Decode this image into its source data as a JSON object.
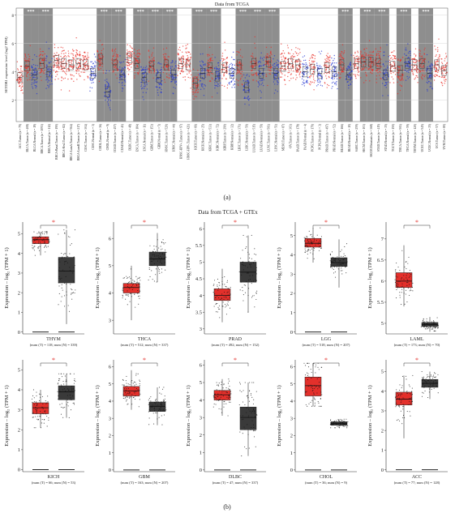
{
  "chart_data": [
    {
      "panel": "(a)",
      "type": "box",
      "title": "Data from TCGA",
      "ylabel": "SETDB1 expression level (log2 TPM)",
      "yticks": [
        2,
        4,
        6,
        8
      ],
      "ylim": [
        0.5,
        8.5
      ],
      "colors": {
        "tumor": "#e8302a",
        "normal": "#2a3bd1",
        "highlight_bg": "#8e8e8e"
      },
      "significance_marker": "***",
      "groups": [
        {
          "label": "ACC.Tumor (n = 79)",
          "kind": "tumor",
          "median": 3.6,
          "sig": false,
          "bg": false
        },
        {
          "label": "BLCA.Tumor (n = 408)",
          "kind": "tumor",
          "median": 4.4,
          "sig": true,
          "bg": true
        },
        {
          "label": "BLCA.Normal (n = 19)",
          "kind": "normal",
          "median": 3.8,
          "sig": false,
          "bg": true
        },
        {
          "label": "BRCA.Tumor (n = 1093)",
          "kind": "tumor",
          "median": 4.6,
          "sig": true,
          "bg": true
        },
        {
          "label": "BRCA.Normal (n = 112)",
          "kind": "normal",
          "median": 4.0,
          "sig": false,
          "bg": true
        },
        {
          "label": "BRCA-Basal.Tumor (n = 190)",
          "kind": "tumor",
          "median": 4.8,
          "sig": false,
          "bg": false
        },
        {
          "label": "BRCA-Her2.Tumor (n = 82)",
          "kind": "tumor",
          "median": 4.6,
          "sig": false,
          "bg": false
        },
        {
          "label": "BRCA-LumA.Tumor (n = 564)",
          "kind": "tumor",
          "median": 4.5,
          "sig": false,
          "bg": false
        },
        {
          "label": "BRCA-LumB.Tumor (n = 217)",
          "kind": "tumor",
          "median": 4.6,
          "sig": false,
          "bg": false
        },
        {
          "label": "CESC.Tumor (n = 304)",
          "kind": "tumor",
          "median": 4.5,
          "sig": false,
          "bg": false
        },
        {
          "label": "CESC.Normal (n = 3)",
          "kind": "normal",
          "median": 3.9,
          "sig": false,
          "bg": false
        },
        {
          "label": "CHOL.Tumor (n = 36)",
          "kind": "tumor",
          "median": 4.9,
          "sig": true,
          "bg": true
        },
        {
          "label": "CHOL.Normal (n = 9)",
          "kind": "normal",
          "median": 2.6,
          "sig": false,
          "bg": true
        },
        {
          "label": "COAD.Tumor (n = 457)",
          "kind": "tumor",
          "median": 4.5,
          "sig": true,
          "bg": true
        },
        {
          "label": "COAD.Normal (n = 41)",
          "kind": "normal",
          "median": 3.8,
          "sig": false,
          "bg": true
        },
        {
          "label": "DLBC.Tumor (n = 48)",
          "kind": "tumor",
          "median": 5.0,
          "sig": false,
          "bg": false
        },
        {
          "label": "ESCA.Tumor (n = 184)",
          "kind": "tumor",
          "median": 4.6,
          "sig": true,
          "bg": true
        },
        {
          "label": "ESCA.Normal (n = 11)",
          "kind": "normal",
          "median": 3.6,
          "sig": false,
          "bg": true
        },
        {
          "label": "GBM.Tumor (n = 153)",
          "kind": "tumor",
          "median": 4.4,
          "sig": true,
          "bg": true
        },
        {
          "label": "GBM.Normal (n = 5)",
          "kind": "normal",
          "median": 3.6,
          "sig": false,
          "bg": true
        },
        {
          "label": "HNSC.Tumor (n = 520)",
          "kind": "tumor",
          "median": 4.5,
          "sig": true,
          "bg": true
        },
        {
          "label": "HNSC.Normal (n = 44)",
          "kind": "normal",
          "median": 3.8,
          "sig": false,
          "bg": true
        },
        {
          "label": "HNSC-HPV+.Tumor (n = 97)",
          "kind": "tumor",
          "median": 4.6,
          "sig": false,
          "bg": false
        },
        {
          "label": "HNSC-HPV-.Tumor (n = 421)",
          "kind": "tumor",
          "median": 4.5,
          "sig": false,
          "bg": false
        },
        {
          "label": "KICH.Tumor (n = 66)",
          "kind": "tumor",
          "median": 3.2,
          "sig": true,
          "bg": true
        },
        {
          "label": "KICH.Normal (n = 25)",
          "kind": "normal",
          "median": 3.9,
          "sig": false,
          "bg": true
        },
        {
          "label": "KIRC.Tumor (n = 533)",
          "kind": "tumor",
          "median": 4.3,
          "sig": true,
          "bg": true
        },
        {
          "label": "KIRC.Normal (n = 72)",
          "kind": "normal",
          "median": 3.7,
          "sig": false,
          "bg": true
        },
        {
          "label": "KIRP.Tumor (n = 290)",
          "kind": "tumor",
          "median": 4.3,
          "sig": false,
          "bg": false
        },
        {
          "label": "KIRP.Normal (n = 32)",
          "kind": "normal",
          "median": 3.9,
          "sig": false,
          "bg": false
        },
        {
          "label": "LIHC.Tumor (n = 371)",
          "kind": "tumor",
          "median": 4.5,
          "sig": true,
          "bg": true
        },
        {
          "label": "LIHC.Normal (n = 50)",
          "kind": "normal",
          "median": 2.9,
          "sig": false,
          "bg": true
        },
        {
          "label": "LUAD.Tumor (n = 515)",
          "kind": "tumor",
          "median": 4.6,
          "sig": true,
          "bg": true
        },
        {
          "label": "LUAD.Normal (n = 59)",
          "kind": "normal",
          "median": 3.9,
          "sig": false,
          "bg": true
        },
        {
          "label": "LUSC.Tumor (n = 501)",
          "kind": "tumor",
          "median": 4.7,
          "sig": true,
          "bg": true
        },
        {
          "label": "LUSC.Normal (n = 51)",
          "kind": "normal",
          "median": 3.9,
          "sig": false,
          "bg": true
        },
        {
          "label": "MESO.Tumor (n = 87)",
          "kind": "tumor",
          "median": 4.4,
          "sig": false,
          "bg": false
        },
        {
          "label": "OV.Tumor (n = 303)",
          "kind": "tumor",
          "median": 4.6,
          "sig": false,
          "bg": false
        },
        {
          "label": "PAAD.Tumor (n = 178)",
          "kind": "tumor",
          "median": 4.5,
          "sig": false,
          "bg": false
        },
        {
          "label": "PAAD.Normal (n = 4)",
          "kind": "normal",
          "median": 4.0,
          "sig": false,
          "bg": false
        },
        {
          "label": "PCPG.Tumor (n = 179)",
          "kind": "tumor",
          "median": 4.2,
          "sig": false,
          "bg": false
        },
        {
          "label": "PCPG.Normal (n = 3)",
          "kind": "normal",
          "median": 3.9,
          "sig": false,
          "bg": false
        },
        {
          "label": "PRAD.Tumor (n = 497)",
          "kind": "tumor",
          "median": 4.3,
          "sig": false,
          "bg": false
        },
        {
          "label": "PRAD.Normal (n = 52)",
          "kind": "normal",
          "median": 4.0,
          "sig": false,
          "bg": false
        },
        {
          "label": "READ.Tumor (n = 166)",
          "kind": "tumor",
          "median": 4.5,
          "sig": true,
          "bg": true
        },
        {
          "label": "READ.Normal (n = 10)",
          "kind": "normal",
          "median": 3.8,
          "sig": false,
          "bg": true
        },
        {
          "label": "SARC.Tumor (n = 259)",
          "kind": "tumor",
          "median": 4.6,
          "sig": false,
          "bg": false
        },
        {
          "label": "SKCM.Tumor (n = 103)",
          "kind": "tumor",
          "median": 4.7,
          "sig": true,
          "bg": true
        },
        {
          "label": "SKCM.Metastasis (n = 368)",
          "kind": "tumor",
          "median": 4.7,
          "sig": false,
          "bg": true
        },
        {
          "label": "STAD.Tumor (n = 415)",
          "kind": "tumor",
          "median": 4.6,
          "sig": true,
          "bg": true
        },
        {
          "label": "STAD.Normal (n = 35)",
          "kind": "normal",
          "median": 3.8,
          "sig": false,
          "bg": true
        },
        {
          "label": "TGCT.Tumor (n = 150)",
          "kind": "tumor",
          "median": 4.4,
          "sig": false,
          "bg": false
        },
        {
          "label": "THCA.Tumor (n = 501)",
          "kind": "tumor",
          "median": 4.1,
          "sig": true,
          "bg": true
        },
        {
          "label": "THCA.Normal (n = 59)",
          "kind": "normal",
          "median": 4.6,
          "sig": false,
          "bg": true
        },
        {
          "label": "THYM.Tumor (n = 120)",
          "kind": "tumor",
          "median": 4.5,
          "sig": false,
          "bg": false
        },
        {
          "label": "UCEC.Tumor (n = 545)",
          "kind": "tumor",
          "median": 4.6,
          "sig": true,
          "bg": true
        },
        {
          "label": "UCEC.Normal (n = 35)",
          "kind": "normal",
          "median": 3.9,
          "sig": false,
          "bg": true
        },
        {
          "label": "UCS.Tumor (n = 57)",
          "kind": "tumor",
          "median": 4.5,
          "sig": false,
          "bg": false
        },
        {
          "label": "UVM.Tumor (n = 80)",
          "kind": "tumor",
          "median": 4.1,
          "sig": false,
          "bg": false
        }
      ]
    },
    {
      "panel": "(b)",
      "type": "box",
      "title": "Data from TCGA + GTEx",
      "ylabel": "Expression – log₂ (TPM + 1)",
      "colors": {
        "tumor": "#e3302b",
        "normal": "#3a3a3a"
      },
      "significance_marker": "*",
      "panels": [
        {
          "cancer": "THYM",
          "footnote": "(num (T) = 118; num (N) = 339)",
          "yticks": [
            0,
            1,
            2,
            3,
            4,
            5
          ],
          "ylim": [
            -0.1,
            5.6
          ],
          "tumor": {
            "q1": 4.5,
            "median": 4.7,
            "q3": 4.85,
            "min": 3.9,
            "max": 5.1
          },
          "normal": {
            "q1": 2.5,
            "median": 3.1,
            "q3": 3.8,
            "min": 0.4,
            "max": 5.2
          }
        },
        {
          "cancer": "THCA",
          "footnote": "(num (T) = 512; num (N) = 337)",
          "yticks": [
            3,
            4,
            5,
            6
          ],
          "ylim": [
            2.5,
            6.6
          ],
          "tumor": {
            "q1": 4.0,
            "median": 4.2,
            "q3": 4.35,
            "min": 3.0,
            "max": 5.0
          },
          "normal": {
            "q1": 5.0,
            "median": 5.25,
            "q3": 5.5,
            "min": 4.4,
            "max": 6.2
          }
        },
        {
          "cancer": "PRAD",
          "footnote": "(num (T) = 492; num (N) = 152)",
          "yticks": [
            3.0,
            3.5,
            4.0,
            4.5,
            5.0,
            5.5,
            6.0
          ],
          "ylim": [
            2.85,
            6.2
          ],
          "tumor": {
            "q1": 3.85,
            "median": 4.0,
            "q3": 4.2,
            "min": 3.2,
            "max": 4.8
          },
          "normal": {
            "q1": 4.4,
            "median": 4.7,
            "q3": 5.0,
            "min": 3.5,
            "max": 5.8
          }
        },
        {
          "cancer": "LGG",
          "footnote": "(num (T) = 518; num (N) = 207)",
          "yticks": [
            0,
            1,
            2,
            3,
            4,
            5
          ],
          "ylim": [
            -0.1,
            5.7
          ],
          "tumor": {
            "q1": 4.4,
            "median": 4.6,
            "q3": 4.85,
            "min": 3.6,
            "max": 5.4
          },
          "normal": {
            "q1": 3.4,
            "median": 3.6,
            "q3": 3.85,
            "min": 2.3,
            "max": 4.8
          }
        },
        {
          "cancer": "LAML",
          "footnote": "(num (T) = 173; num (N) = 70)",
          "yticks": [
            5.0,
            5.5,
            6.0,
            6.5,
            7.0
          ],
          "ylim": [
            4.75,
            7.4
          ],
          "tumor": {
            "q1": 5.85,
            "median": 6.0,
            "q3": 6.2,
            "min": 5.4,
            "max": 6.85
          },
          "normal": {
            "q1": 4.93,
            "median": 4.97,
            "q3": 5.02,
            "min": 4.8,
            "max": 5.15
          }
        },
        {
          "cancer": "KICH",
          "footnote": "(num (T) = 66; num (N) = 53)",
          "yticks": [
            0,
            1,
            2,
            3,
            4,
            5
          ],
          "ylim": [
            -0.1,
            5.5
          ],
          "tumor": {
            "q1": 2.8,
            "median": 3.1,
            "q3": 3.35,
            "min": 2.1,
            "max": 4.0
          },
          "normal": {
            "q1": 3.5,
            "median": 3.9,
            "q3": 4.2,
            "min": 2.6,
            "max": 4.8
          }
        },
        {
          "cancer": "GBM",
          "footnote": "(num (T) = 163; num (N) = 207)",
          "yticks": [
            0,
            1,
            2,
            3,
            4,
            5,
            6
          ],
          "ylim": [
            -0.1,
            6.4
          ],
          "tumor": {
            "q1": 4.3,
            "median": 4.6,
            "q3": 4.85,
            "min": 3.5,
            "max": 5.8
          },
          "normal": {
            "q1": 3.4,
            "median": 3.7,
            "q3": 3.95,
            "min": 2.6,
            "max": 4.8
          }
        },
        {
          "cancer": "DLBC",
          "footnote": "(num (T) = 47; num (N) = 337)",
          "yticks": [
            0,
            1,
            2,
            3,
            4,
            5,
            6
          ],
          "ylim": [
            -0.1,
            6.3
          ],
          "tumor": {
            "q1": 4.0,
            "median": 4.3,
            "q3": 4.55,
            "min": 3.1,
            "max": 5.2
          },
          "normal": {
            "q1": 2.3,
            "median": 3.0,
            "q3": 3.6,
            "min": 0.8,
            "max": 5.0
          }
        },
        {
          "cancer": "CHOL",
          "footnote": "(num (T) = 36; num (N) = 9)",
          "yticks": [
            0,
            1,
            2,
            3,
            4,
            5,
            6
          ],
          "ylim": [
            -0.1,
            6.4
          ],
          "tumor": {
            "q1": 4.3,
            "median": 4.9,
            "q3": 5.4,
            "min": 3.7,
            "max": 6.2
          },
          "normal": {
            "q1": 2.6,
            "median": 2.7,
            "q3": 2.8,
            "min": 2.45,
            "max": 2.95
          }
        },
        {
          "cancer": "ACC",
          "footnote": "(num (T) = 77; num (N) = 128)",
          "yticks": [
            0,
            1,
            2,
            3,
            4,
            5
          ],
          "ylim": [
            -0.1,
            5.6
          ],
          "tumor": {
            "q1": 3.3,
            "median": 3.6,
            "q3": 3.95,
            "min": 1.6,
            "max": 4.8
          },
          "normal": {
            "q1": 4.2,
            "median": 4.4,
            "q3": 4.6,
            "min": 3.6,
            "max": 5.0
          }
        }
      ]
    }
  ]
}
